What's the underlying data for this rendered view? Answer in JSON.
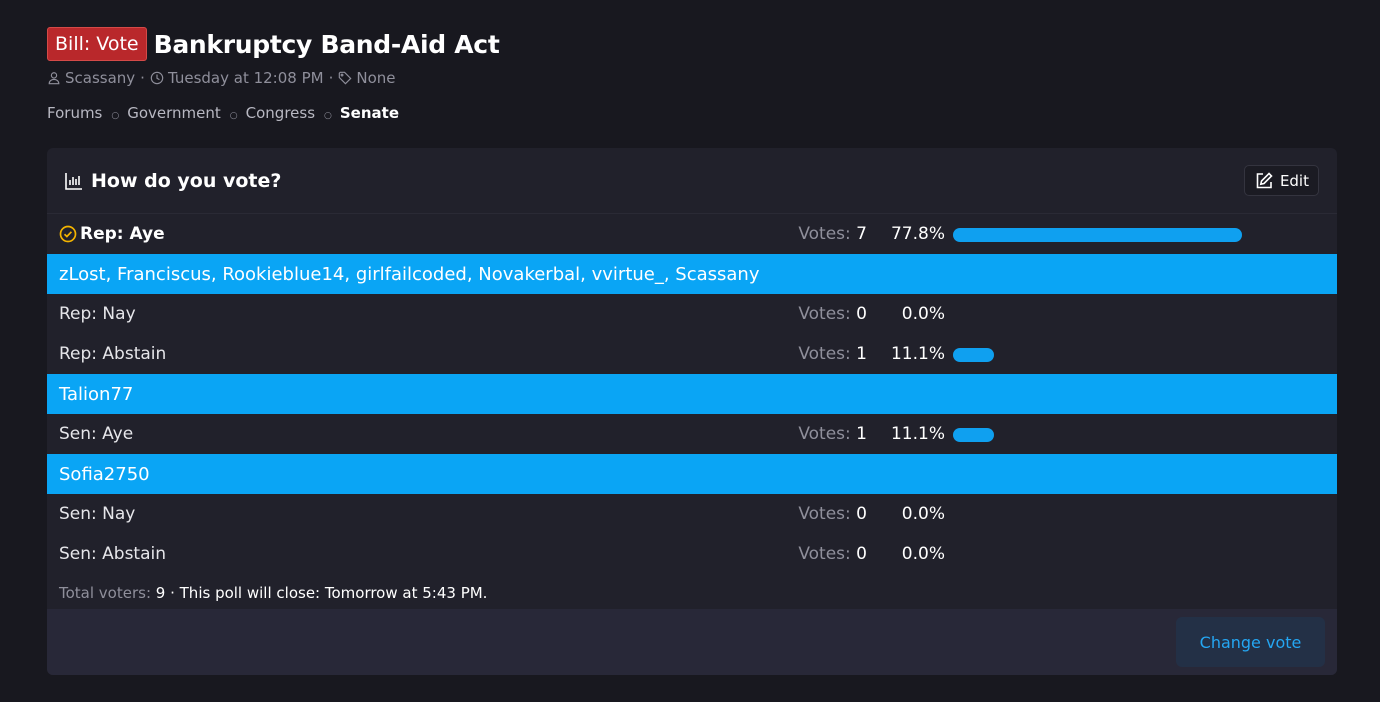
{
  "thread": {
    "prefix": "Bill: Vote",
    "title": "Bankruptcy Band-Aid Act",
    "author": "Scassany",
    "date": "Tuesday at 12:08 PM",
    "tags": "None"
  },
  "breadcrumb": [
    "Forums",
    "Government",
    "Congress",
    "Senate"
  ],
  "poll": {
    "title": "How do you vote?",
    "edit_label": "Edit",
    "votes_label": "Votes:",
    "options": [
      {
        "label": "Rep: Aye",
        "votes": "7",
        "percent": "77.8%",
        "fraction": 0.778,
        "voters": "zLost, Franciscus, Rookieblue14, girlfailcoded, Novakerbal, vvirtue_, Scassany",
        "selected": true
      },
      {
        "label": "Rep: Nay",
        "votes": "0",
        "percent": "0.0%",
        "fraction": 0.0,
        "voters": ""
      },
      {
        "label": "Rep: Abstain",
        "votes": "1",
        "percent": "11.1%",
        "fraction": 0.111,
        "voters": "Talion77"
      },
      {
        "label": "Sen: Aye",
        "votes": "1",
        "percent": "11.1%",
        "fraction": 0.111,
        "voters": "Sofia2750"
      },
      {
        "label": "Sen: Nay",
        "votes": "0",
        "percent": "0.0%",
        "fraction": 0.0,
        "voters": ""
      },
      {
        "label": "Sen: Abstain",
        "votes": "0",
        "percent": "0.0%",
        "fraction": 0.0,
        "voters": ""
      }
    ],
    "total_voters_label": "Total voters:",
    "total_voters": "9",
    "close_text": "· This poll will close: Tomorrow at 5:43 PM.",
    "change_vote_label": "Change vote"
  },
  "colors": {
    "accent": "#0aa5f5",
    "prefix_bg": "#b9282b",
    "check": "#f4b400"
  },
  "icons": [
    "user-icon",
    "clock-icon",
    "tag-icon",
    "bar-chart-icon",
    "edit-icon",
    "check-circle-icon"
  ]
}
